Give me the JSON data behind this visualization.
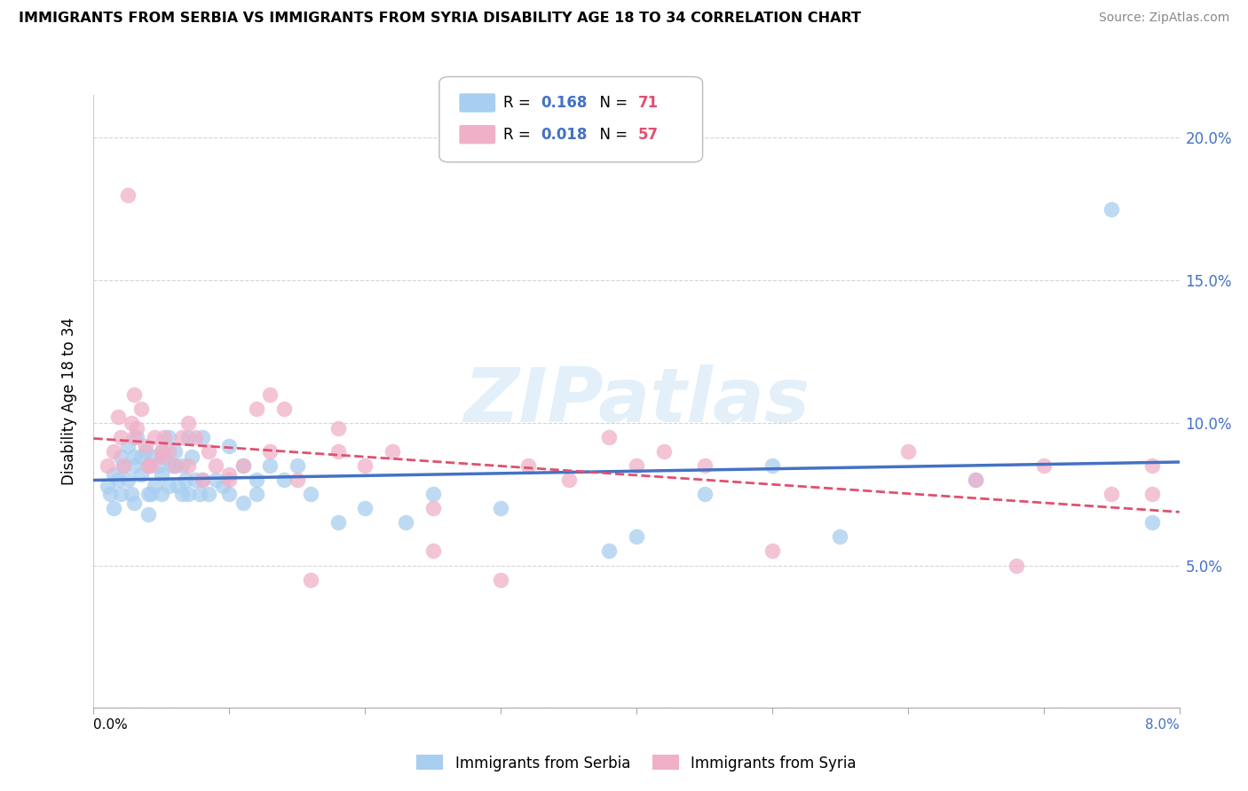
{
  "title": "IMMIGRANTS FROM SERBIA VS IMMIGRANTS FROM SYRIA DISABILITY AGE 18 TO 34 CORRELATION CHART",
  "source": "Source: ZipAtlas.com",
  "ylabel": "Disability Age 18 to 34",
  "xlim": [
    0.0,
    8.0
  ],
  "ylim": [
    0.0,
    21.5
  ],
  "ytick_vals": [
    0,
    5,
    10,
    15,
    20
  ],
  "ytick_labels_right": [
    "",
    "5.0%",
    "10.0%",
    "15.0%",
    "20.0%"
  ],
  "color_serbia": "#a8cef0",
  "color_syria": "#f0b0c8",
  "color_serbia_line": "#4472c4",
  "color_syria_line": "#e05070",
  "color_r_val": "#4472c4",
  "color_n_val": "#e05070",
  "legend_r1": "0.168",
  "legend_n1": "71",
  "legend_r2": "0.018",
  "legend_n2": "57",
  "watermark": "ZIPatlas",
  "serbia_x": [
    0.1,
    0.12,
    0.15,
    0.15,
    0.18,
    0.2,
    0.2,
    0.22,
    0.25,
    0.25,
    0.28,
    0.3,
    0.3,
    0.3,
    0.32,
    0.35,
    0.35,
    0.38,
    0.4,
    0.4,
    0.4,
    0.42,
    0.45,
    0.45,
    0.48,
    0.5,
    0.5,
    0.5,
    0.52,
    0.55,
    0.55,
    0.58,
    0.6,
    0.6,
    0.62,
    0.65,
    0.65,
    0.68,
    0.7,
    0.7,
    0.72,
    0.75,
    0.78,
    0.8,
    0.8,
    0.85,
    0.9,
    0.95,
    1.0,
    1.0,
    1.1,
    1.1,
    1.2,
    1.2,
    1.3,
    1.4,
    1.5,
    1.6,
    1.8,
    2.0,
    2.3,
    2.5,
    3.0,
    3.8,
    4.0,
    4.5,
    5.0,
    5.5,
    6.5,
    7.8,
    7.5
  ],
  "serbia_y": [
    7.8,
    7.5,
    8.2,
    7.0,
    8.0,
    8.8,
    7.5,
    8.5,
    9.2,
    8.0,
    7.5,
    8.8,
    8.5,
    7.2,
    9.5,
    8.8,
    8.2,
    9.0,
    8.5,
    7.5,
    6.8,
    7.5,
    8.8,
    7.8,
    8.5,
    9.0,
    8.2,
    7.5,
    8.8,
    9.5,
    7.8,
    8.5,
    9.0,
    8.5,
    7.8,
    8.5,
    7.5,
    8.0,
    9.5,
    7.5,
    8.8,
    8.0,
    7.5,
    9.5,
    8.0,
    7.5,
    8.0,
    7.8,
    9.2,
    7.5,
    8.5,
    7.2,
    8.0,
    7.5,
    8.5,
    8.0,
    8.5,
    7.5,
    6.5,
    7.0,
    6.5,
    7.5,
    7.0,
    5.5,
    6.0,
    7.5,
    8.5,
    6.0,
    8.0,
    6.5,
    17.5
  ],
  "syria_x": [
    0.1,
    0.15,
    0.18,
    0.2,
    0.22,
    0.25,
    0.28,
    0.3,
    0.32,
    0.35,
    0.38,
    0.4,
    0.42,
    0.45,
    0.5,
    0.52,
    0.55,
    0.6,
    0.65,
    0.7,
    0.75,
    0.8,
    0.85,
    0.9,
    1.0,
    1.1,
    1.2,
    1.3,
    1.4,
    1.5,
    1.6,
    1.8,
    2.0,
    2.2,
    2.5,
    3.0,
    3.2,
    3.5,
    4.0,
    4.5,
    5.0,
    6.0,
    6.8,
    7.0,
    7.5,
    0.3,
    0.5,
    0.7,
    1.0,
    1.3,
    1.8,
    2.5,
    3.8,
    4.2,
    6.5,
    7.8,
    7.8
  ],
  "syria_y": [
    8.5,
    9.0,
    10.2,
    9.5,
    8.5,
    18.0,
    10.0,
    11.0,
    9.8,
    10.5,
    9.2,
    8.5,
    8.5,
    9.5,
    8.8,
    9.5,
    9.0,
    8.5,
    9.5,
    8.5,
    9.5,
    8.0,
    9.0,
    8.5,
    8.0,
    8.5,
    10.5,
    9.0,
    10.5,
    8.0,
    4.5,
    9.8,
    8.5,
    9.0,
    7.0,
    4.5,
    8.5,
    8.0,
    8.5,
    8.5,
    5.5,
    9.0,
    5.0,
    8.5,
    7.5,
    9.5,
    9.0,
    10.0,
    8.2,
    11.0,
    9.0,
    5.5,
    9.5,
    9.0,
    8.0,
    8.5,
    7.5
  ]
}
